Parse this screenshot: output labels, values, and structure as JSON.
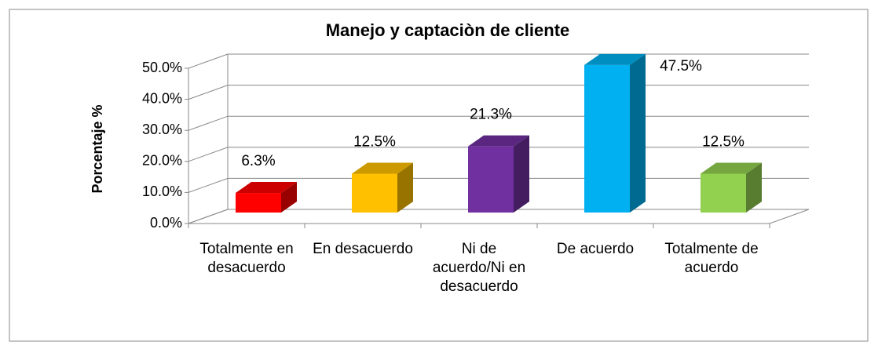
{
  "chart_data": {
    "type": "bar3d",
    "title": "Manejo y captaciòn de cliente",
    "y_label": "Porcentaje %",
    "categories": [
      "Totalmente en desacuerdo",
      "En desacuerdo",
      "Ni de acuerdo/Ni en desacuerdo",
      "De acuerdo",
      "Totalmente de acuerdo"
    ],
    "values": [
      6.3,
      12.5,
      21.3,
      47.5,
      12.5
    ],
    "value_labels": [
      "6.3%",
      "12.5%",
      "21.3%",
      "47.5%",
      "12.5%"
    ],
    "colors": [
      "#ff0000",
      "#ffc000",
      "#7030a0",
      "#00b0f0",
      "#92d050"
    ],
    "ylim": [
      0,
      50
    ],
    "yticks": [
      {
        "value": 0,
        "label": "0.0%"
      },
      {
        "value": 10,
        "label": "10.0%"
      },
      {
        "value": 20,
        "label": "20.0%"
      },
      {
        "value": 30,
        "label": "30.0%"
      },
      {
        "value": 40,
        "label": "40.0%"
      },
      {
        "value": 50,
        "label": "50.0%"
      }
    ],
    "grid": true
  }
}
